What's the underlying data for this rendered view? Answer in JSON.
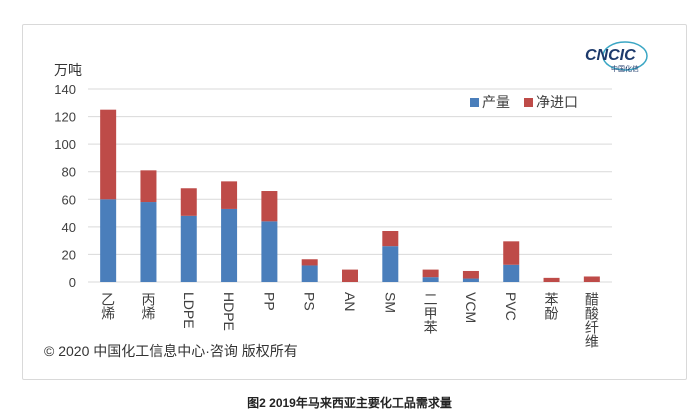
{
  "chart_data": {
    "type": "bar",
    "stacked": true,
    "title": "图2 2019年马来西亚主要化工品需求量",
    "ylabel": "万吨",
    "xlabel": "",
    "ylim": [
      0,
      140
    ],
    "yticks": [
      0,
      20,
      40,
      60,
      80,
      100,
      120,
      140
    ],
    "grid": true,
    "legend_position": "top-right",
    "categories": [
      "乙烯",
      "丙烯",
      "LDPE",
      "HDPE",
      "PP",
      "PS",
      "AN",
      "SM",
      "二甲苯",
      "VCM",
      "PVC",
      "苯酚",
      "醋酸纤维"
    ],
    "series": [
      {
        "name": "产量",
        "color": "#4a7ebb",
        "values": [
          60,
          58,
          48,
          53,
          44,
          12,
          0,
          26,
          3.5,
          2.5,
          12.5,
          0,
          0
        ]
      },
      {
        "name": "净进口",
        "color": "#be4b48",
        "values": [
          65,
          23,
          20,
          20,
          22,
          4.5,
          9,
          11,
          5.5,
          5.5,
          17,
          3,
          4
        ]
      }
    ]
  },
  "logo": {
    "text": "CNCIC",
    "subtext": "中国化信"
  },
  "copyright": "© 2020 中国化工信息中心·咨询 版权所有"
}
